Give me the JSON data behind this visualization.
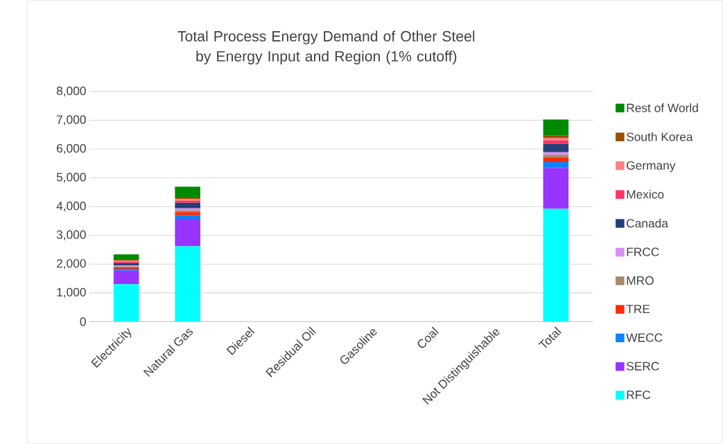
{
  "chart_data": {
    "type": "bar",
    "stacked": true,
    "title": "Total Process Energy Demand of Other Steel by Energy Input and Region (1% cutoff)",
    "categories": [
      "Electricity",
      "Natural Gas",
      "Diesel",
      "Residual Oil",
      "Gasoline",
      "Coal",
      "Not Distinguishable",
      "Total"
    ],
    "series": [
      {
        "name": "RFC",
        "color": "#00ffff",
        "values": [
          1300,
          2620,
          null,
          null,
          null,
          null,
          null,
          3920
        ]
      },
      {
        "name": "SERC",
        "color": "#9933ff",
        "values": [
          470,
          950,
          null,
          null,
          null,
          null,
          null,
          1420
        ]
      },
      {
        "name": "WECC",
        "color": "#0a84ff",
        "values": [
          70,
          130,
          null,
          null,
          null,
          null,
          null,
          210
        ]
      },
      {
        "name": "TRE",
        "color": "#ff2a00",
        "values": [
          50,
          110,
          null,
          null,
          null,
          null,
          null,
          160
        ]
      },
      {
        "name": "MRO",
        "color": "#a8886c",
        "values": [
          30,
          60,
          null,
          null,
          null,
          null,
          null,
          90
        ]
      },
      {
        "name": "FRCC",
        "color": "#d98ef5",
        "values": [
          30,
          70,
          null,
          null,
          null,
          null,
          null,
          90
        ]
      },
      {
        "name": "Canada",
        "color": "#243f78",
        "values": [
          90,
          190,
          null,
          null,
          null,
          null,
          null,
          290
        ]
      },
      {
        "name": "Mexico",
        "color": "#ff3366",
        "values": [
          50,
          70,
          null,
          null,
          null,
          null,
          null,
          120
        ]
      },
      {
        "name": "Germany",
        "color": "#ff8080",
        "values": [
          30,
          70,
          null,
          null,
          null,
          null,
          null,
          80
        ]
      },
      {
        "name": "South Korea",
        "color": "#995000",
        "values": [
          30,
          50,
          null,
          null,
          null,
          null,
          null,
          90
        ]
      },
      {
        "name": "Rest of World",
        "color": "#008a00",
        "values": [
          190,
          370,
          null,
          null,
          null,
          null,
          null,
          560
        ]
      }
    ],
    "ylim": [
      0,
      8000
    ],
    "yticks": [
      0,
      {
        "value": 1000,
        "label": "1,000"
      },
      {
        "value": 2000,
        "label": "2,000"
      },
      {
        "value": 3000,
        "label": "3,000"
      },
      {
        "value": 4000,
        "label": "4,000"
      },
      {
        "value": 5000,
        "label": "5,000"
      },
      {
        "value": 6000,
        "label": "6,000"
      },
      {
        "value": 7000,
        "label": "7,000"
      },
      {
        "value": 8000,
        "label": "8,000"
      }
    ],
    "grid": "y",
    "legend": "right"
  }
}
